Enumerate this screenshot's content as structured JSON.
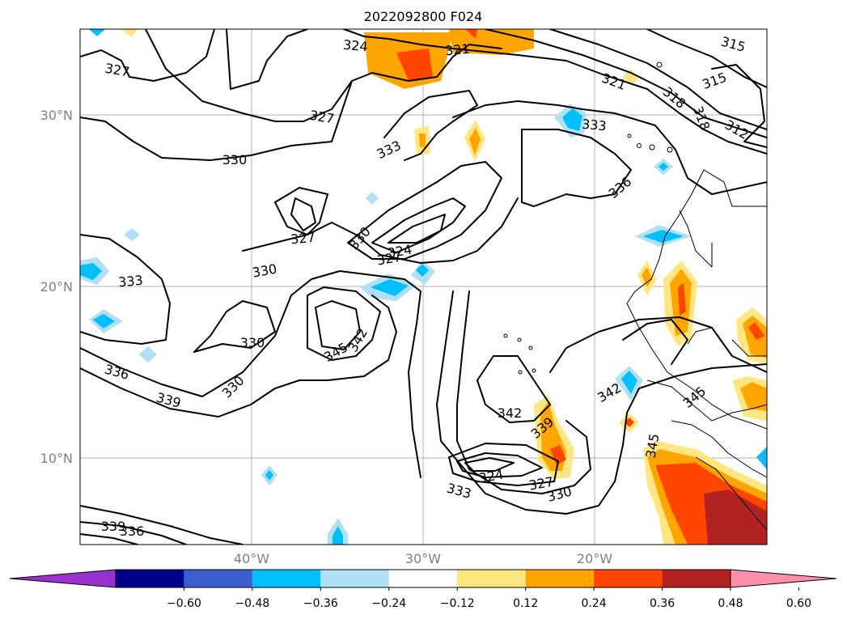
{
  "title": "2022092800 F024",
  "lat_labels": [
    "30°N",
    "20°N",
    "10°N"
  ],
  "lon_labels": [
    "40°W",
    "30°W",
    "20°W"
  ],
  "map": {
    "lon_range": [
      -50,
      -10
    ],
    "lat_range": [
      5,
      35
    ],
    "gridlines": true,
    "grid_lons": [
      -40,
      -30,
      -20
    ],
    "grid_lats": [
      10,
      20,
      30
    ]
  },
  "contour_labels": [
    "315",
    "318",
    "318",
    "321",
    "321",
    "324",
    "324",
    "327",
    "327",
    "327",
    "327",
    "330",
    "330",
    "330",
    "330",
    "330",
    "333",
    "333",
    "333",
    "333",
    "336",
    "336",
    "339",
    "339",
    "336",
    "342",
    "342",
    "342",
    "345",
    "345",
    "345",
    "339",
    "312",
    "315"
  ],
  "colorbar": {
    "ticks": [
      "−0.60",
      "−0.48",
      "−0.36",
      "−0.24",
      "−0.12",
      "0.12",
      "0.24",
      "0.36",
      "0.48",
      "0.60"
    ],
    "colors": [
      "#9932cc",
      "#00008b",
      "#3a5fcd",
      "#00bfff",
      "#afe0f5",
      "#ffffff",
      "#ffe680",
      "#ffa500",
      "#ff4500",
      "#b22222",
      "#ff8fab"
    ],
    "extend": "both"
  }
}
